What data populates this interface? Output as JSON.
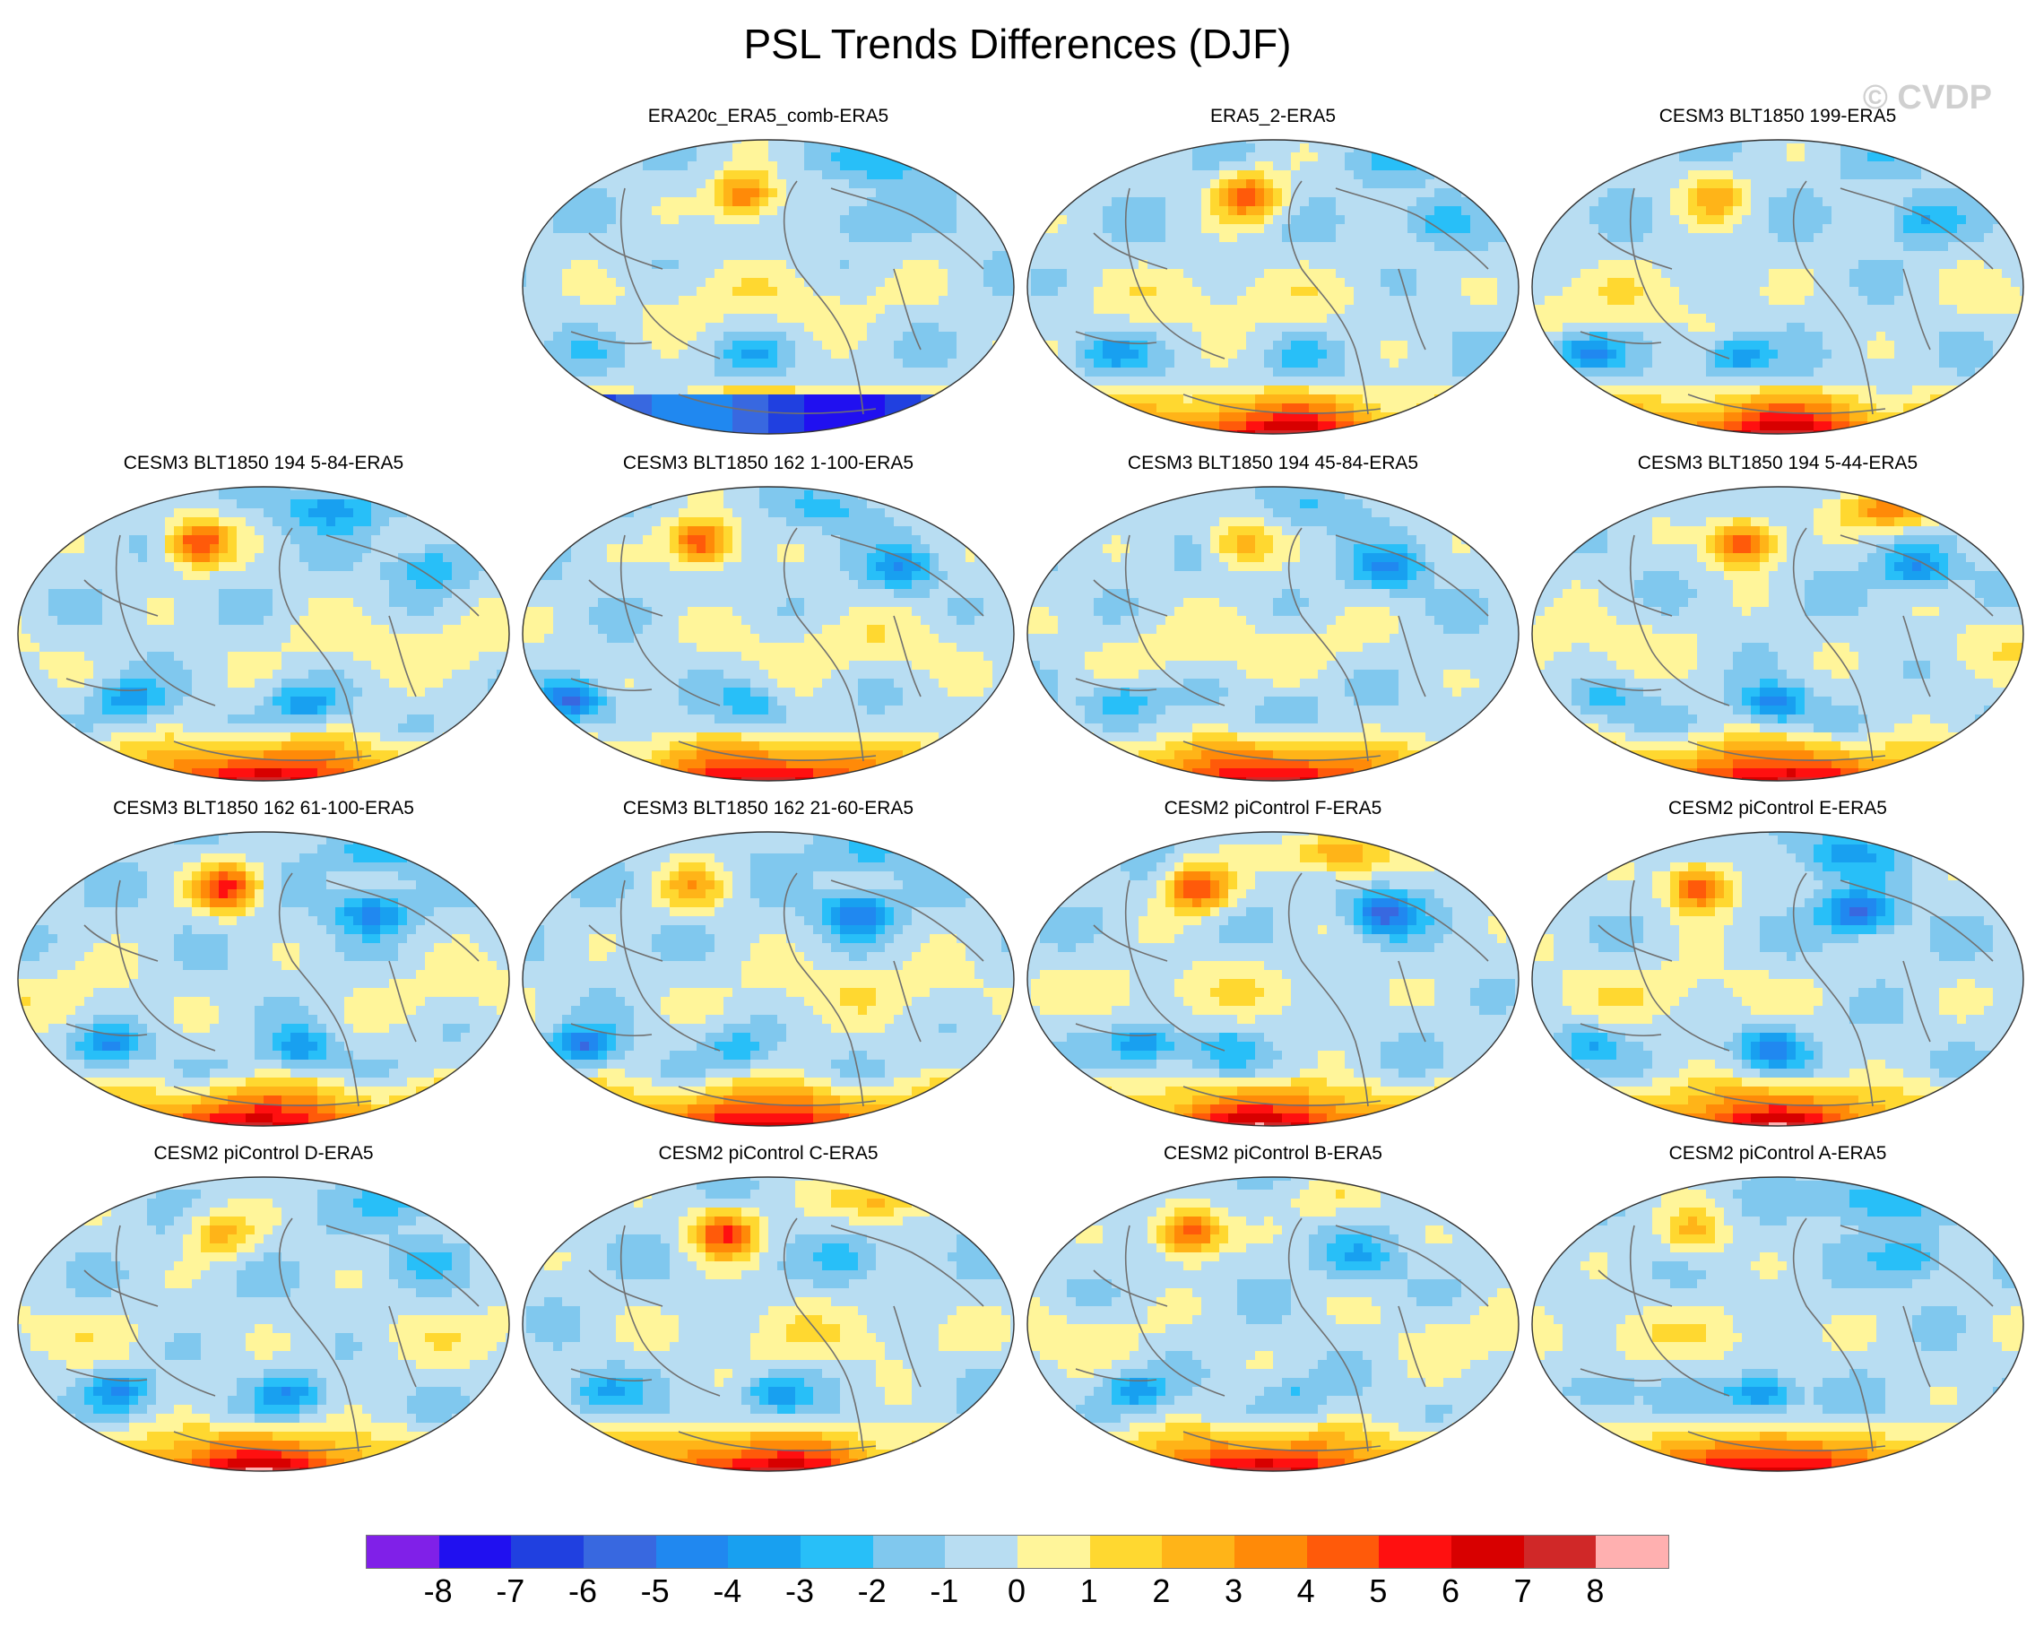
{
  "title": "PSL Trends Differences (DJF)",
  "watermark": "© CVDP",
  "panels": [
    {
      "label": "ERA20c_ERA5_comb-ERA5",
      "seed": 11
    },
    {
      "label": "ERA5_2-ERA5",
      "seed": 23
    },
    {
      "label": "CESM3 BLT1850 199-ERA5",
      "seed": 37
    },
    {
      "label": "CESM3 BLT1850 194 5-84-ERA5",
      "seed": 41
    },
    {
      "label": "CESM3 BLT1850 162 1-100-ERA5",
      "seed": 53
    },
    {
      "label": "CESM3 BLT1850 194 45-84-ERA5",
      "seed": 67
    },
    {
      "label": "CESM3 BLT1850 194 5-44-ERA5",
      "seed": 71
    },
    {
      "label": "CESM3 BLT1850 162 61-100-ERA5",
      "seed": 83
    },
    {
      "label": "CESM3 BLT1850 162 21-60-ERA5",
      "seed": 97
    },
    {
      "label": "CESM2 piControl F-ERA5",
      "seed": 101
    },
    {
      "label": "CESM2 piControl E-ERA5",
      "seed": 113
    },
    {
      "label": "CESM2 piControl D-ERA5",
      "seed": 127
    },
    {
      "label": "CESM2 piControl C-ERA5",
      "seed": 131
    },
    {
      "label": "CESM2 piControl B-ERA5",
      "seed": 149
    },
    {
      "label": "CESM2 piControl A-ERA5",
      "seed": 157
    }
  ],
  "colorbar": {
    "colors": [
      "#8020e8",
      "#2010f0",
      "#2040e0",
      "#3868e0",
      "#2088f0",
      "#18a0f0",
      "#28bff8",
      "#80c8ee",
      "#b8ddf2",
      "#fff59a",
      "#ffd830",
      "#ffb418",
      "#ff8a08",
      "#ff5a0a",
      "#ff1010",
      "#d80000",
      "#d02828",
      "#ffb0b0"
    ],
    "ticks": [
      "-8",
      "-7",
      "-6",
      "-5",
      "-4",
      "-3",
      "-2",
      "-1",
      "0",
      "1",
      "2",
      "3",
      "4",
      "5",
      "6",
      "7",
      "8"
    ]
  }
}
